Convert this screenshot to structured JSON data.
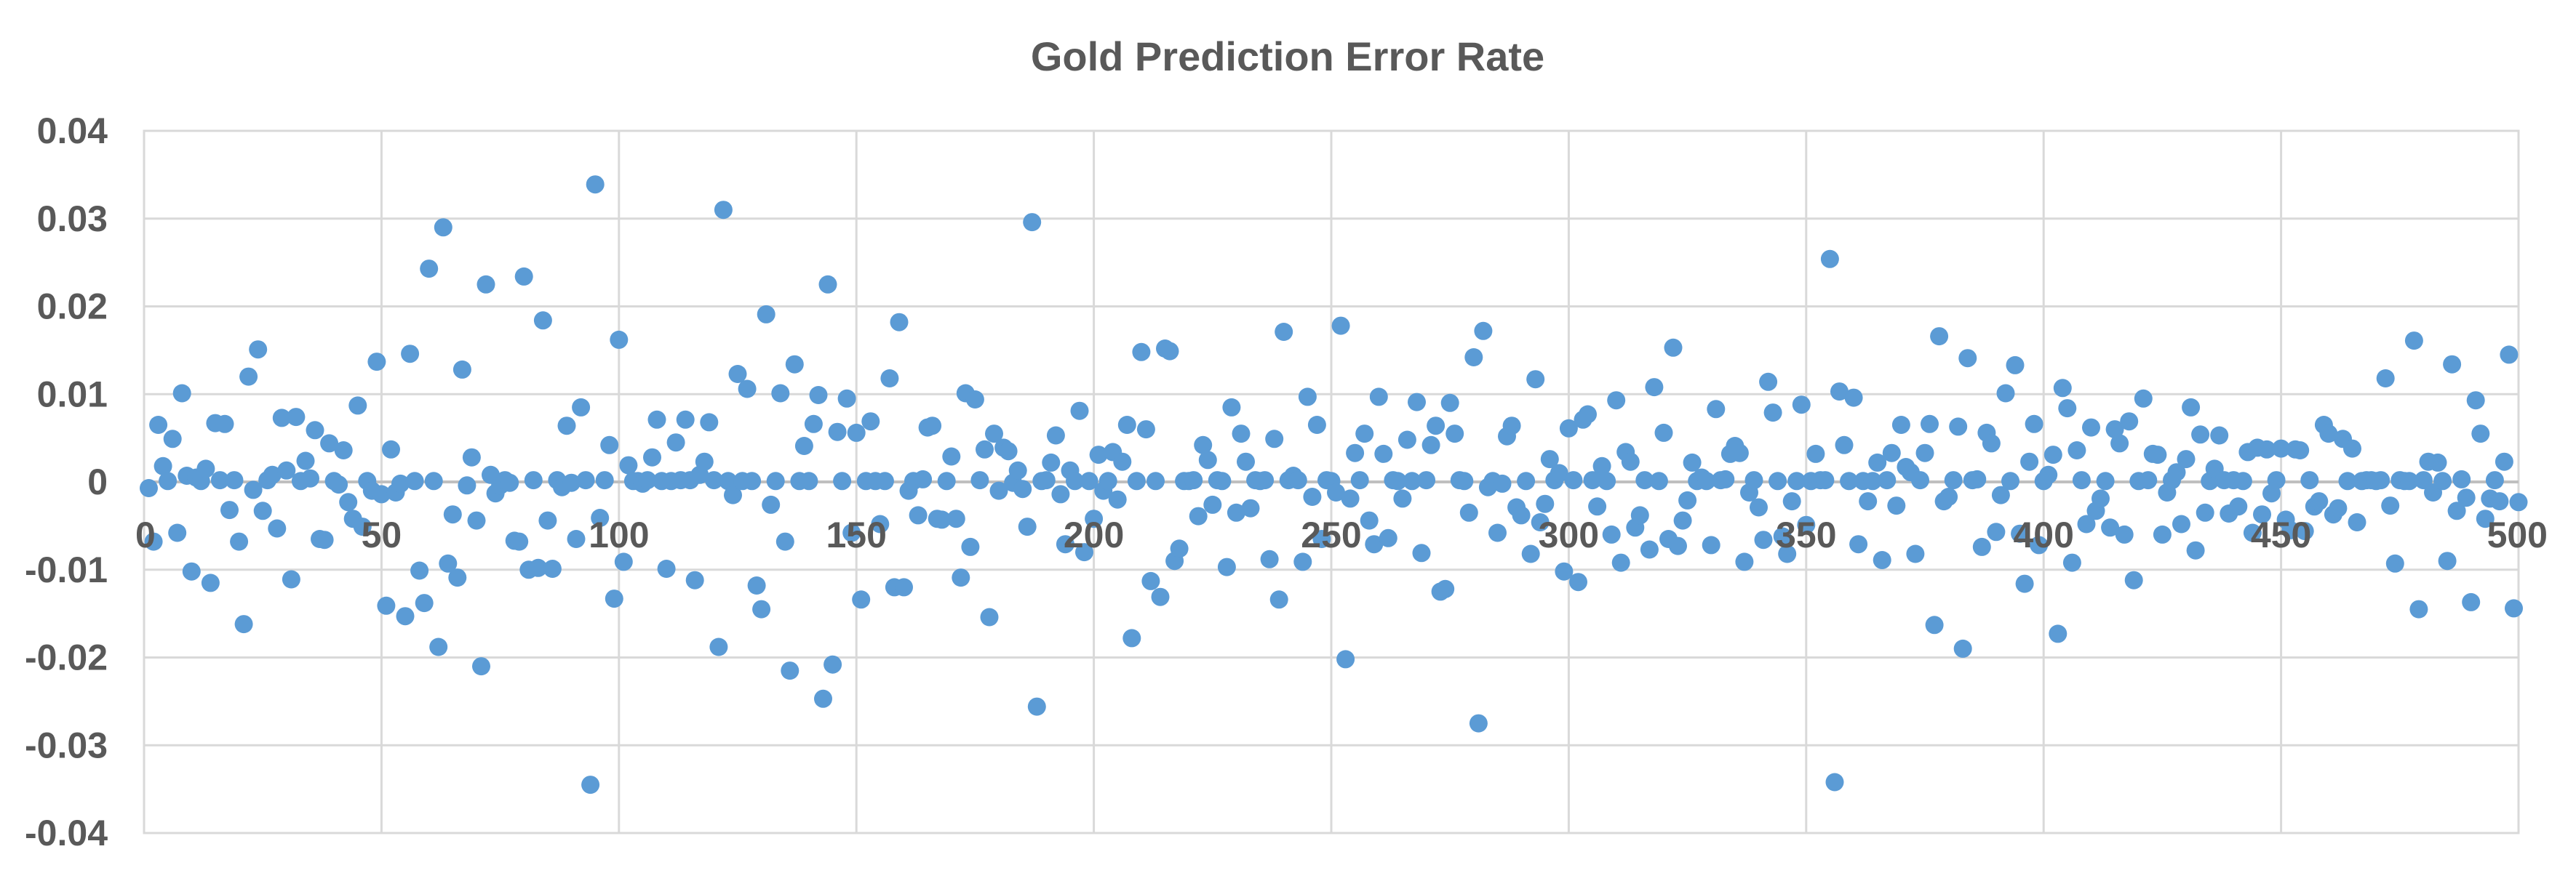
{
  "chart_data": {
    "type": "scatter",
    "title": "Gold Prediction Error Rate",
    "xlabel": "",
    "ylabel": "",
    "xlim": [
      0,
      500
    ],
    "ylim": [
      -0.04,
      0.04
    ],
    "x_ticks": [
      0,
      50,
      100,
      150,
      200,
      250,
      300,
      350,
      400,
      450,
      500
    ],
    "x_tick_labels": [
      "0",
      "50",
      "100",
      "150",
      "200",
      "250",
      "300",
      "350",
      "400",
      "450",
      "500"
    ],
    "y_ticks": [
      0.04,
      0.03,
      0.02,
      0.01,
      0,
      -0.01,
      -0.02,
      -0.03,
      -0.04
    ],
    "y_tick_labels": [
      "0.04",
      "0.03",
      "0.02",
      "0.01",
      "0",
      "-0.01",
      "-0.02",
      "-0.03",
      "-0.04"
    ],
    "grid": true,
    "marker_color": "#5b9bd5",
    "series": [
      {
        "x": [
          1,
          2,
          3,
          4,
          5,
          6,
          7,
          8,
          9,
          10,
          11,
          12,
          13,
          14,
          15,
          16,
          17,
          18,
          19,
          20,
          21,
          22,
          23,
          24,
          25,
          26,
          27,
          28,
          29,
          30,
          31,
          32,
          33,
          34,
          35,
          36,
          37,
          38,
          39,
          40,
          41,
          42,
          43,
          44,
          45,
          46,
          47,
          48,
          49,
          50,
          51,
          52,
          53,
          54,
          55,
          56,
          57,
          58,
          59,
          60,
          61,
          62,
          63,
          64,
          65,
          66,
          67,
          68,
          69,
          70,
          71,
          72,
          73,
          74,
          75,
          76,
          77,
          78,
          79,
          80,
          81,
          82,
          83,
          84,
          85,
          86,
          87,
          88,
          89,
          90,
          91,
          92,
          93,
          94,
          95,
          96,
          97,
          98,
          99,
          100,
          101,
          102,
          103,
          104,
          105,
          106,
          107,
          108,
          109,
          110,
          111,
          112,
          113,
          114,
          115,
          116,
          117,
          118,
          119,
          120,
          121,
          122,
          123,
          124,
          125,
          126,
          127,
          128,
          129,
          130,
          131,
          132,
          133,
          134,
          135,
          136,
          137,
          138,
          139,
          140,
          141,
          142,
          143,
          144,
          145,
          146,
          147,
          148,
          149,
          150,
          151,
          152,
          153,
          154,
          155,
          156,
          157,
          158,
          159,
          160,
          161,
          162,
          163,
          164,
          165,
          166,
          167,
          168,
          169,
          170,
          171,
          172,
          173,
          174,
          175,
          176,
          177,
          178,
          179,
          180,
          181,
          182,
          183,
          184,
          185,
          186,
          187,
          188,
          189,
          190,
          191,
          192,
          193,
          194,
          195,
          196,
          197,
          198,
          199,
          200,
          201,
          202,
          203,
          204,
          205,
          206,
          207,
          208,
          209,
          210,
          211,
          212,
          213,
          214,
          215,
          216,
          217,
          218,
          219,
          220,
          221,
          222,
          223,
          224,
          225,
          226,
          227,
          228,
          229,
          230,
          231,
          232,
          233,
          234,
          235,
          236,
          237,
          238,
          239,
          240,
          241,
          242,
          243,
          244,
          245,
          246,
          247,
          248,
          249,
          250,
          251,
          252,
          253,
          254,
          255,
          256,
          257,
          258,
          259,
          260,
          261,
          262,
          263,
          264,
          265,
          266,
          267,
          268,
          269,
          270,
          271,
          272,
          273,
          274,
          275,
          276,
          277,
          278,
          279,
          280,
          281,
          282,
          283,
          284,
          285,
          286,
          287,
          288,
          289,
          290,
          291,
          292,
          293,
          294,
          295,
          296,
          297,
          298,
          299,
          300,
          301,
          302,
          303,
          304,
          305,
          306,
          307,
          308,
          309,
          310,
          311,
          312,
          313,
          314,
          315,
          316,
          317,
          318,
          319,
          320,
          321,
          322,
          323,
          324,
          325,
          326,
          327,
          328,
          329,
          330,
          331,
          332,
          333,
          334,
          335,
          336,
          337,
          338,
          339,
          340,
          341,
          342,
          343,
          344,
          345,
          346,
          347,
          348,
          349,
          350,
          351,
          352,
          353,
          354,
          355,
          356,
          357,
          358,
          359,
          360,
          361,
          362,
          363,
          364,
          365,
          366,
          367,
          368,
          369,
          370,
          371,
          372,
          373,
          374,
          375,
          376,
          377,
          378,
          379,
          380,
          381,
          382,
          383,
          384,
          385,
          386,
          387,
          388,
          389,
          390,
          391,
          392,
          393,
          394,
          395,
          396,
          397,
          398,
          399,
          400,
          401,
          402,
          403,
          404,
          405,
          406,
          407,
          408,
          409,
          410,
          411,
          412,
          413,
          414,
          415,
          416,
          417,
          418,
          419,
          420,
          421,
          422,
          423,
          424,
          425,
          426,
          427,
          428,
          429,
          430,
          431,
          432,
          433,
          434,
          435,
          436,
          437,
          438,
          439,
          440,
          441,
          442,
          443,
          444,
          445,
          446,
          447,
          448,
          449,
          450,
          451,
          452,
          453,
          454,
          455,
          456,
          457,
          458,
          459,
          460,
          461,
          462,
          463,
          464,
          465,
          466,
          467,
          468,
          469,
          470,
          471,
          472,
          473,
          474,
          475,
          476,
          477,
          478,
          479,
          480,
          481,
          482,
          483,
          484,
          485,
          486,
          487,
          488,
          489,
          490,
          491,
          492,
          493,
          494,
          495,
          496,
          497,
          498,
          499,
          500
        ],
        "y": [
          -0.0007,
          -0.0068,
          0.0065,
          0.0018,
          0.0001,
          0.0049,
          -0.0058,
          0.0101,
          0.0007,
          -0.0102,
          0.0005,
          0.0001,
          0.0015,
          -0.0115,
          0.0067,
          0.0002,
          0.0066,
          -0.0032,
          0.0002,
          -0.0068,
          -0.0162,
          0.012,
          -0.0009,
          0.0151,
          -0.0033,
          0.0002,
          0.0008,
          -0.0053,
          0.0073,
          0.0013,
          -0.0111,
          0.0074,
          0.0001,
          0.0024,
          0.0004,
          0.0059,
          -0.0065,
          -0.0066,
          0.0044,
          0.0001,
          -0.0003,
          0.0036,
          -0.0023,
          -0.0042,
          0.0087,
          -0.0051,
          0.0001,
          -0.001,
          0.0137,
          -0.0014,
          -0.0141,
          0.0037,
          -0.0012,
          -0.0002,
          -0.0153,
          0.0146,
          0.0001,
          -0.0101,
          -0.0138,
          0.0243,
          0.0001,
          -0.0188,
          0.029,
          -0.0093,
          -0.0037,
          -0.0109,
          0.0128,
          -0.0004,
          0.0028,
          -0.0044,
          -0.021,
          0.0225,
          0.0008,
          -0.0013,
          -0.0004,
          0.0002,
          -0.0001,
          -0.0067,
          -0.0068,
          0.0234,
          -0.01,
          0.0002,
          -0.0098,
          0.0184,
          -0.0044,
          -0.0099,
          0.0002,
          -0.0006,
          0.0064,
          -0.0001,
          -0.0065,
          0.0085,
          0.0002,
          -0.0345,
          0.0339,
          -0.0041,
          0.0002,
          0.0042,
          -0.0133,
          0.0162,
          -0.0091,
          0.0019,
          0.0001,
          0.0001,
          -0.0002,
          0.0002,
          0.0028,
          0.0071,
          0.0001,
          -0.0099,
          0.0001,
          0.0045,
          0.0002,
          0.0071,
          0.0002,
          -0.0112,
          0.0008,
          0.0023,
          0.0068,
          0.0002,
          -0.0188,
          0.031,
          0.0001,
          -0.0015,
          0.0123,
          0.0001,
          0.0106,
          0.0001,
          -0.0118,
          -0.0145,
          0.0191,
          -0.0026,
          0.0001,
          0.0101,
          -0.0068,
          -0.0215,
          0.0134,
          0.0001,
          0.0041,
          0.0001,
          0.0066,
          0.0099,
          -0.0247,
          0.0225,
          -0.0208,
          0.0057,
          0.0001,
          0.0095,
          -0.0058,
          0.0056,
          -0.0134,
          0.0001,
          0.0069,
          0.0001,
          -0.0048,
          0.0001,
          0.0118,
          -0.012,
          0.0182,
          -0.012,
          -0.001,
          0.0001,
          -0.0038,
          0.0003,
          0.0062,
          0.0064,
          -0.0042,
          -0.0043,
          0.0001,
          0.0029,
          -0.0042,
          -0.0109,
          0.0101,
          -0.0074,
          0.0094,
          0.0002,
          0.0037,
          -0.0154,
          0.0055,
          -0.001,
          0.0039,
          0.0035,
          -0.0001,
          0.0013,
          -0.0008,
          -0.0051,
          0.0296,
          -0.0256,
          0.0001,
          0.0002,
          0.0022,
          0.0053,
          -0.0014,
          -0.0071,
          0.0013,
          0.0001,
          0.0081,
          -0.008,
          0.0001,
          -0.0042,
          0.0031,
          -0.001,
          0.0001,
          0.0034,
          -0.002,
          0.0023,
          0.0065,
          -0.0178,
          0.0001,
          0.0148,
          0.006,
          -0.0113,
          0.0001,
          -0.0131,
          0.0152,
          0.0149,
          -0.009,
          -0.0076,
          0.0001,
          0.0001,
          0.0002,
          -0.0039,
          0.0042,
          0.0025,
          -0.0026,
          0.0002,
          0.0001,
          -0.0097,
          0.0085,
          -0.0035,
          0.0055,
          0.0023,
          -0.003,
          0.0002,
          0.0001,
          0.0002,
          -0.0088,
          0.0049,
          -0.0134,
          0.0171,
          0.0002,
          0.0007,
          0.0002,
          -0.0091,
          0.0097,
          -0.0017,
          0.0065,
          -0.0065,
          0.0002,
          0.0001,
          -0.0012,
          0.0178,
          -0.0202,
          -0.0019,
          0.0033,
          0.0002,
          0.0055,
          -0.0044,
          -0.0071,
          0.0097,
          0.0032,
          -0.0064,
          0.0002,
          0.0001,
          -0.0019,
          0.0048,
          0.0001,
          0.0091,
          -0.0081,
          0.0002,
          0.0042,
          0.0064,
          -0.0125,
          -0.0122,
          0.009,
          0.0055,
          0.0002,
          0.0001,
          -0.0035,
          0.0142,
          -0.0275,
          0.0172,
          -0.0006,
          0.0001,
          -0.0058,
          -0.0002,
          0.0052,
          0.0064,
          -0.0029,
          -0.0038,
          0.0001,
          -0.0082,
          0.0117,
          -0.0046,
          -0.0025,
          0.0026,
          0.0002,
          0.001,
          -0.0102,
          0.0061,
          0.0002,
          -0.0114,
          0.0071,
          0.0077,
          0.0002,
          -0.0028,
          0.0018,
          0.0001,
          -0.006,
          0.0093,
          -0.0092,
          0.0034,
          0.0023,
          -0.0052,
          -0.0038,
          0.0002,
          -0.0077,
          0.0108,
          0.0001,
          0.0056,
          -0.0065,
          0.0153,
          -0.0073,
          -0.0044,
          -0.0021,
          0.0022,
          0.0001,
          0.0005,
          0.0001,
          -0.0072,
          0.0083,
          0.0002,
          0.0003,
          0.0032,
          0.0041,
          0.0033,
          -0.0091,
          -0.0012,
          0.0002,
          -0.0029,
          -0.0066,
          0.0114,
          0.0079,
          0.0001,
          -0.0062,
          -0.0082,
          -0.0022,
          0.0001,
          0.0088,
          -0.0049,
          0.0001,
          0.0032,
          0.0002,
          0.0002,
          0.0254,
          -0.0342,
          0.0103,
          0.0042,
          0.0001,
          0.0096,
          -0.0071,
          0.0001,
          -0.0022,
          0.0001,
          0.0022,
          -0.0089,
          0.0002,
          0.0033,
          -0.0027,
          0.0065,
          0.0017,
          0.0011,
          -0.0082,
          0.0002,
          0.0033,
          0.0066,
          -0.0163,
          0.0166,
          -0.0022,
          -0.0017,
          0.0002,
          0.0063,
          -0.019,
          0.0141,
          0.0002,
          0.0003,
          -0.0074,
          0.0056,
          0.0044,
          -0.0057,
          -0.0015,
          0.0101,
          0.0001,
          0.0133,
          -0.0059,
          -0.0116,
          0.0023,
          0.0066,
          -0.0072,
          0.0001,
          0.0008,
          0.0031,
          -0.0173,
          0.0107,
          0.0084,
          -0.0092,
          0.0036,
          0.0002,
          -0.0048,
          0.0062,
          -0.0033,
          -0.0019,
          0.0001,
          -0.0052,
          0.006,
          0.0044,
          -0.006,
          0.0069,
          -0.0112,
          0.0001,
          0.0095,
          0.0002,
          0.0032,
          0.0031,
          -0.006,
          -0.0012,
          0.0002,
          0.0011,
          -0.0048,
          0.0026,
          0.0085,
          -0.0078,
          0.0054,
          -0.0035,
          0.0001,
          0.0015,
          0.0053,
          0.0002,
          -0.0036,
          0.0002,
          -0.0028,
          0.0001,
          0.0034,
          -0.0058,
          0.0039,
          -0.0037,
          0.0037,
          -0.0013,
          0.0002,
          0.0038,
          -0.0043,
          -0.0055,
          0.0037,
          0.0036,
          -0.0056,
          0.0002,
          -0.0028,
          -0.0022,
          0.0065,
          0.0055,
          -0.0037,
          -0.003,
          0.0049,
          0.0001,
          0.0038,
          -0.0046,
          0.0001,
          0.0002,
          0.0002,
          0.0001,
          0.0002,
          0.0118,
          -0.0027,
          -0.0093,
          0.0002,
          0.0001,
          0.0001,
          0.0161,
          -0.0145,
          0.0002,
          0.0023,
          -0.0012,
          0.0022,
          0.0001,
          -0.009,
          0.0134,
          -0.0033,
          0.0003,
          -0.0018,
          -0.0137,
          0.0093,
          0.0055,
          -0.0042,
          -0.0019,
          0.0002,
          -0.0022,
          0.0023,
          0.0145,
          -0.0144,
          -0.0023
        ]
      }
    ]
  }
}
